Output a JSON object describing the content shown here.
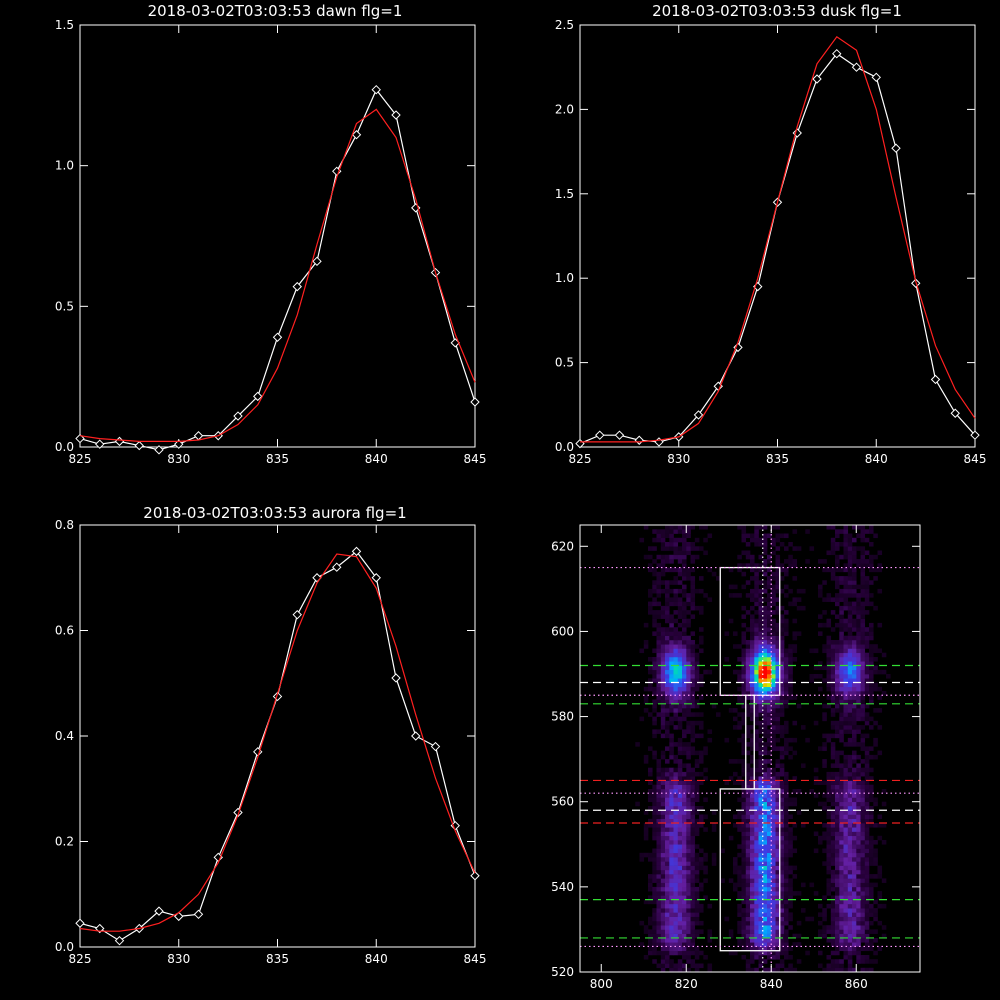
{
  "chart_data": [
    {
      "type": "line",
      "title": "2018-03-02T03:03:53 dawn flg=1",
      "xlim": [
        825,
        845
      ],
      "ylim": [
        0,
        1.5
      ],
      "xticks": [
        825,
        830,
        835,
        840,
        845
      ],
      "xtick_labels": [
        "825",
        "830",
        "835",
        "840",
        "845"
      ],
      "yticks": [
        0,
        0.5,
        1.0,
        1.5
      ],
      "ytick_labels": [
        "0.0",
        "0.5",
        "1.0",
        "1.5"
      ],
      "series": [
        {
          "color": "#ffffff",
          "marker": "diamond",
          "x": [
            825,
            826,
            827,
            828,
            829,
            830,
            831,
            832,
            833,
            834,
            835,
            836,
            837,
            838,
            839,
            840,
            841,
            842,
            843,
            844,
            845
          ],
          "y": [
            0.03,
            0.01,
            0.02,
            0.005,
            -0.01,
            0.01,
            0.04,
            0.04,
            0.11,
            0.18,
            0.39,
            0.57,
            0.66,
            0.98,
            1.11,
            1.27,
            1.18,
            0.85,
            0.62,
            0.37,
            0.16
          ]
        },
        {
          "color": "#ff2020",
          "marker": "none",
          "x": [
            825,
            826,
            827,
            828,
            829,
            830,
            831,
            832,
            833,
            834,
            835,
            836,
            837,
            838,
            839,
            840,
            841,
            842,
            843,
            844,
            845
          ],
          "y": [
            0.04,
            0.03,
            0.025,
            0.02,
            0.02,
            0.02,
            0.025,
            0.04,
            0.08,
            0.15,
            0.28,
            0.47,
            0.72,
            0.96,
            1.15,
            1.2,
            1.1,
            0.88,
            0.62,
            0.4,
            0.23
          ]
        }
      ]
    },
    {
      "type": "line",
      "title": "2018-03-02T03:03:53 dusk flg=1",
      "xlim": [
        825,
        845
      ],
      "ylim": [
        0,
        2.5
      ],
      "xticks": [
        825,
        830,
        835,
        840,
        845
      ],
      "xtick_labels": [
        "825",
        "830",
        "835",
        "840",
        "845"
      ],
      "yticks": [
        0,
        0.5,
        1.0,
        1.5,
        2.0,
        2.5
      ],
      "ytick_labels": [
        "0.0",
        "0.5",
        "1.0",
        "1.5",
        "2.0",
        "2.5"
      ],
      "series": [
        {
          "color": "#ffffff",
          "marker": "diamond",
          "x": [
            825,
            826,
            827,
            828,
            829,
            830,
            831,
            832,
            833,
            834,
            835,
            836,
            837,
            838,
            839,
            840,
            841,
            842,
            843,
            844,
            845
          ],
          "y": [
            0.02,
            0.07,
            0.07,
            0.04,
            0.03,
            0.06,
            0.19,
            0.36,
            0.59,
            0.95,
            1.45,
            1.86,
            2.18,
            2.33,
            2.25,
            2.19,
            1.77,
            0.97,
            0.4,
            0.2,
            0.07
          ]
        },
        {
          "color": "#ff2020",
          "marker": "none",
          "x": [
            825,
            826,
            827,
            828,
            829,
            830,
            831,
            832,
            833,
            834,
            835,
            836,
            837,
            838,
            839,
            840,
            841,
            842,
            843,
            844,
            845
          ],
          "y": [
            0.03,
            0.03,
            0.03,
            0.03,
            0.04,
            0.06,
            0.14,
            0.33,
            0.62,
            1.0,
            1.45,
            1.9,
            2.27,
            2.43,
            2.35,
            2.0,
            1.48,
            0.98,
            0.6,
            0.34,
            0.17
          ]
        }
      ]
    },
    {
      "type": "line",
      "title": "2018-03-02T03:03:53 aurora flg=1",
      "xlim": [
        825,
        845
      ],
      "ylim": [
        0,
        0.8
      ],
      "xticks": [
        825,
        830,
        835,
        840,
        845
      ],
      "xtick_labels": [
        "825",
        "830",
        "835",
        "840",
        "845"
      ],
      "yticks": [
        0,
        0.2,
        0.4,
        0.6,
        0.8
      ],
      "ytick_labels": [
        "0.0",
        "0.2",
        "0.4",
        "0.6",
        "0.8"
      ],
      "series": [
        {
          "color": "#ffffff",
          "marker": "diamond",
          "x": [
            825,
            826,
            827,
            828,
            829,
            830,
            831,
            832,
            833,
            834,
            835,
            836,
            837,
            838,
            839,
            840,
            841,
            842,
            843,
            844,
            845
          ],
          "y": [
            0.045,
            0.035,
            0.012,
            0.035,
            0.068,
            0.058,
            0.062,
            0.17,
            0.255,
            0.37,
            0.475,
            0.63,
            0.7,
            0.72,
            0.75,
            0.7,
            0.51,
            0.4,
            0.38,
            0.23,
            0.135
          ]
        },
        {
          "color": "#ff2020",
          "marker": "none",
          "x": [
            825,
            826,
            827,
            828,
            829,
            830,
            831,
            832,
            833,
            834,
            835,
            836,
            837,
            838,
            839,
            840,
            841,
            842,
            843,
            844,
            845
          ],
          "y": [
            0.035,
            0.03,
            0.03,
            0.035,
            0.045,
            0.065,
            0.1,
            0.16,
            0.25,
            0.36,
            0.48,
            0.6,
            0.69,
            0.745,
            0.74,
            0.68,
            0.57,
            0.44,
            0.32,
            0.22,
            0.14
          ]
        }
      ]
    },
    {
      "type": "heatmap",
      "title": "",
      "xlim": [
        795,
        875
      ],
      "ylim": [
        520,
        625
      ],
      "xticks": [
        800,
        820,
        840,
        860
      ],
      "xtick_labels": [
        "800",
        "820",
        "840",
        "860"
      ],
      "yticks": [
        520,
        540,
        560,
        580,
        600,
        620
      ],
      "ytick_labels": [
        "520",
        "540",
        "560",
        "580",
        "600",
        "620"
      ],
      "columns_x": [
        817,
        838,
        858
      ],
      "column_peaks": [
        0.6,
        1.0,
        0.45
      ],
      "upper_blob_center_y": 590,
      "lower_band_y": [
        528,
        562
      ],
      "boxes": [
        {
          "x": [
            828,
            842
          ],
          "y": [
            585,
            615
          ]
        },
        {
          "x": [
            828,
            842
          ],
          "y": [
            525,
            563
          ]
        },
        {
          "x": [
            834,
            836
          ],
          "y": [
            563,
            585
          ]
        }
      ],
      "hlines": [
        {
          "y": 615,
          "color": "#ff99ff",
          "style": "dotted"
        },
        {
          "y": 592,
          "color": "#33dd33",
          "style": "dashed"
        },
        {
          "y": 588,
          "color": "#ffffff",
          "style": "dashed"
        },
        {
          "y": 583,
          "color": "#33dd33",
          "style": "dashed"
        },
        {
          "y": 565,
          "color": "#ee2020",
          "style": "dashed"
        },
        {
          "y": 562,
          "color": "#ff99ff",
          "style": "dotted"
        },
        {
          "y": 558,
          "color": "#ffffff",
          "style": "dashed"
        },
        {
          "y": 555,
          "color": "#ee2020",
          "style": "dashed"
        },
        {
          "y": 537,
          "color": "#33dd33",
          "style": "dashed"
        },
        {
          "y": 528,
          "color": "#33dd33",
          "style": "dashed"
        },
        {
          "y": 526,
          "color": "#ff99ff",
          "style": "dotted"
        },
        {
          "y": 585,
          "color": "#ff99ff",
          "style": "dotted"
        }
      ],
      "vlines": [
        {
          "x": 838,
          "color": "#ffffff",
          "style": "dotted"
        },
        {
          "x": 840,
          "color": "#ff99ff",
          "style": "dotted"
        }
      ]
    }
  ]
}
